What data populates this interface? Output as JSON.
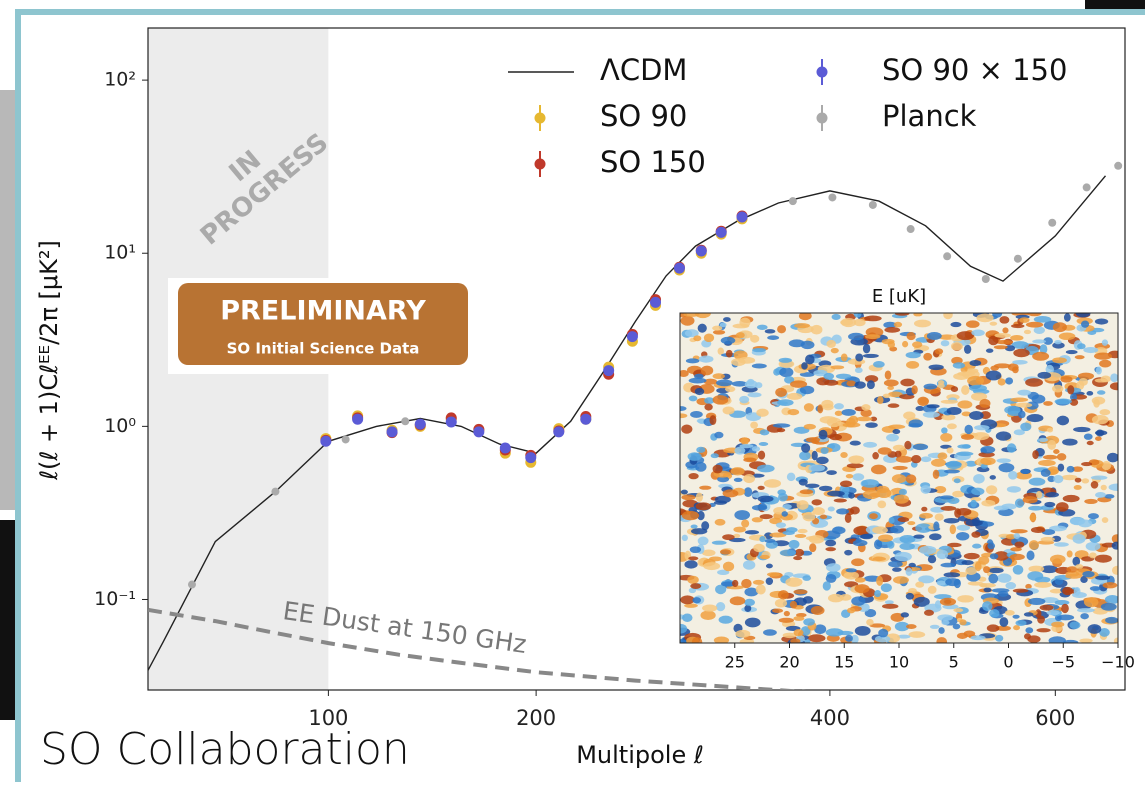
{
  "chart_data": {
    "type": "scatter",
    "xlabel": "Multipole ℓ",
    "ylabel": "ℓ(ℓ + 1)Cℓᴱᴱ/2π [μK²]",
    "xscale": "sqrt",
    "yscale": "log",
    "xlim": [
      41,
      670
    ],
    "ylim": [
      0.03,
      200
    ],
    "xticks": [
      100,
      200,
      400,
      600
    ],
    "yticks": [
      {
        "value": 0.1,
        "label": "10⁻¹"
      },
      {
        "value": 1,
        "label": "10⁰"
      },
      {
        "value": 10,
        "label": "10¹"
      },
      {
        "value": 100,
        "label": "10²"
      }
    ],
    "shaded_xrange": [
      41,
      100
    ],
    "series": [
      {
        "name": "ΛCDM",
        "style": "solid",
        "color": "#222222",
        "x": [
          41,
          45,
          60,
          80,
          100,
          120,
          140,
          160,
          180,
          200,
          220,
          240,
          260,
          280,
          300,
          330,
          360,
          400,
          440,
          480,
          520,
          550,
          600,
          650
        ],
        "values": [
          0.039,
          0.057,
          0.216,
          0.42,
          0.82,
          1.0,
          1.11,
          1.0,
          0.79,
          0.7,
          1.07,
          2.08,
          4.05,
          7.4,
          11.0,
          15.4,
          19.5,
          22.9,
          20.0,
          14.4,
          8.4,
          6.9,
          12.6,
          28
        ]
      },
      {
        "name": "SO 90",
        "style": "markers",
        "color": "#e6b830",
        "x": [
          99,
          112,
          127,
          140,
          155,
          169,
          183,
          197,
          213,
          229,
          243,
          258,
          273,
          289,
          304,
          318,
          333
        ],
        "values": [
          0.85,
          1.15,
          0.95,
          1.0,
          1.1,
          0.95,
          0.7,
          0.62,
          0.97,
          1.1,
          2.2,
          3.1,
          5.0,
          8.0,
          10.0,
          12.9,
          15.8
        ]
      },
      {
        "name": "SO 150",
        "style": "markers",
        "color": "#c0392b",
        "x": [
          99,
          112,
          127,
          140,
          155,
          169,
          183,
          197,
          213,
          229,
          243,
          258,
          273,
          289,
          304,
          318,
          333
        ],
        "values": [
          0.83,
          1.12,
          0.92,
          1.02,
          1.12,
          0.96,
          0.73,
          0.68,
          0.94,
          1.14,
          2.0,
          3.4,
          5.4,
          8.3,
          10.4,
          13.4,
          16.4
        ]
      },
      {
        "name": "SO 90 × 150",
        "style": "markers",
        "color": "#5b5bd6",
        "x": [
          99,
          112,
          127,
          140,
          155,
          169,
          183,
          197,
          213,
          229,
          243,
          258,
          273,
          289,
          304,
          318,
          333
        ],
        "values": [
          0.82,
          1.1,
          0.93,
          1.03,
          1.06,
          0.93,
          0.75,
          0.66,
          0.93,
          1.1,
          2.1,
          3.3,
          5.2,
          8.2,
          10.3,
          13.2,
          16.2
        ]
      },
      {
        "name": "Planck",
        "style": "markers",
        "color": "#aaaaaa",
        "x": [
          53,
          80,
          107,
          133,
          371,
          402,
          435,
          467,
          499,
          534,
          564,
          597,
          631,
          663
        ],
        "values": [
          0.122,
          0.42,
          0.84,
          1.07,
          20,
          21,
          19,
          13.8,
          9.6,
          7.1,
          9.3,
          15,
          24,
          32
        ]
      },
      {
        "name": "EE Dust at 150 GHz",
        "style": "dashed",
        "color": "#888888",
        "label_on_line": true,
        "x": [
          41,
          60,
          80,
          100,
          130,
          160,
          200,
          260,
          330,
          420
        ],
        "values": [
          0.087,
          0.075,
          0.064,
          0.056,
          0.048,
          0.043,
          0.038,
          0.034,
          0.031,
          0.028
        ]
      }
    ]
  },
  "stamp": {
    "rotated": "IN PROGRESS",
    "badge_title": "PRELIMINARY",
    "badge_subtitle": "SO Initial Science Data"
  },
  "inset": {
    "title": "E [uK]",
    "xlim": [
      30,
      -10
    ],
    "xticks": [
      25,
      20,
      15,
      10,
      5,
      0,
      {
        "value": -5,
        "label": "−5"
      },
      {
        "value": -10,
        "label": "−10"
      }
    ]
  },
  "credit": "SO Collaboration"
}
